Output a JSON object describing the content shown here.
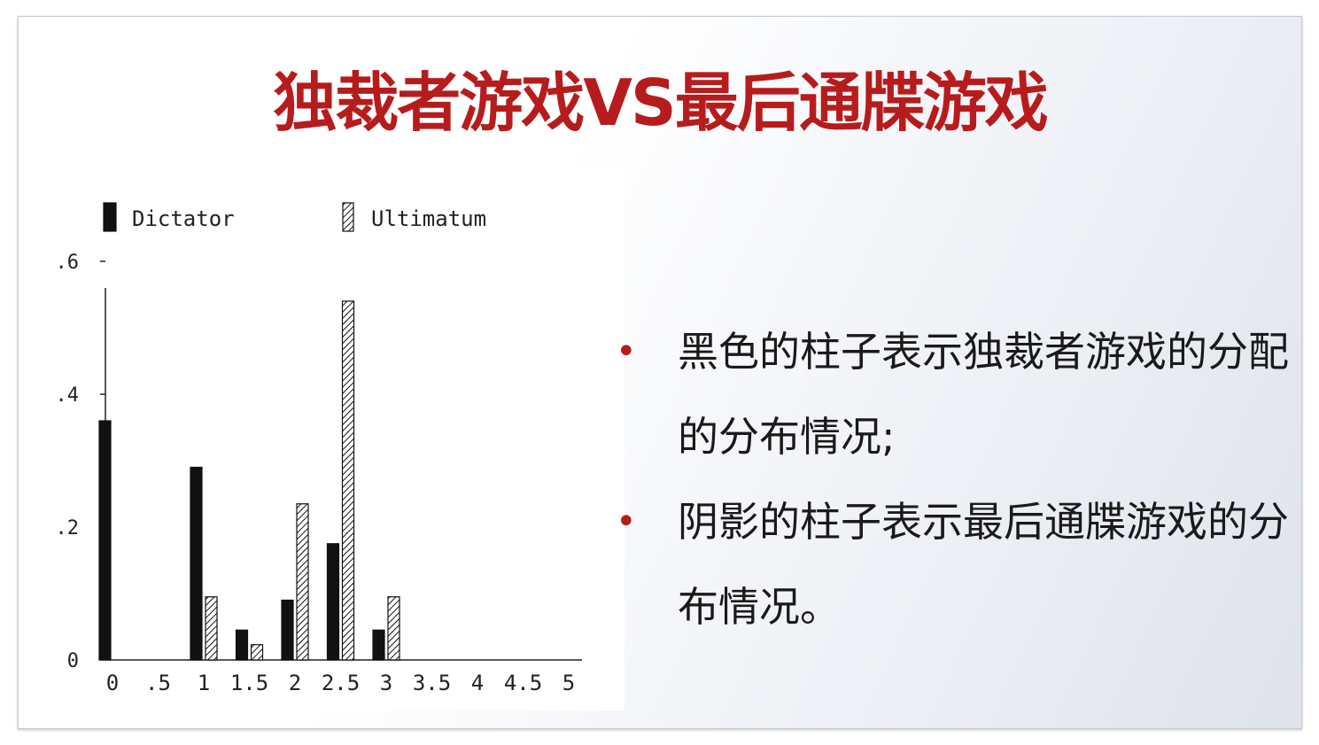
{
  "slide": {
    "title": "独裁者游戏VS最后通牒游戏",
    "bullets": [
      "黑色的柱子表示独裁者游戏的分配的分布情况;",
      "阴影的柱子表示最后通牒游戏的分布情况。"
    ],
    "colors": {
      "title": "#b71c1c",
      "bullet": "#b71c1c",
      "text": "#1a1a1a",
      "dictator_bar": "#111111",
      "ultimatum_hatch": "#111111"
    }
  },
  "chart_data": {
    "type": "bar",
    "categories": [
      "0",
      ".5",
      "1",
      "1.5",
      "2",
      "2.5",
      "3",
      "3.5",
      "4",
      "4.5",
      "5"
    ],
    "series": [
      {
        "name": "Dictator",
        "style": "solid",
        "values": [
          0.36,
          0,
          0.29,
          0.045,
          0.09,
          0.175,
          0.045,
          0,
          0,
          0,
          0
        ]
      },
      {
        "name": "Ultimatum",
        "style": "hatched",
        "values": [
          0,
          0,
          0.095,
          0.023,
          0.235,
          0.54,
          0.095,
          0,
          0,
          0,
          0
        ]
      }
    ],
    "yticks": [
      ".6",
      ".4",
      ".2",
      "0"
    ],
    "ylim": [
      0,
      0.6
    ],
    "legend": "top",
    "grid": false
  }
}
